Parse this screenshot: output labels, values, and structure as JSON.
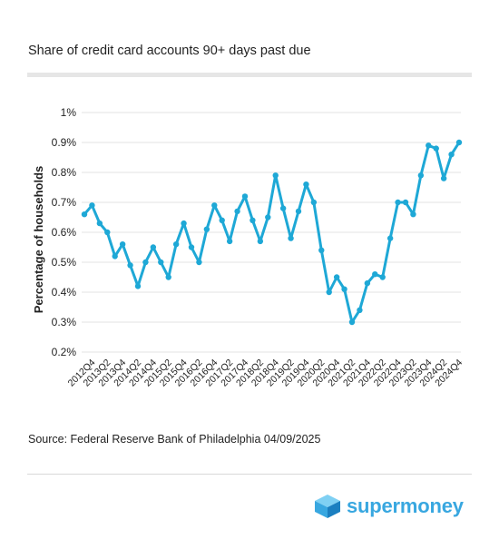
{
  "chart_data": {
    "type": "line",
    "title": "Share of credit card accounts 90+ days past due",
    "xlabel": "",
    "ylabel": "Percentage of households",
    "ylim": [
      0.2,
      1.0
    ],
    "yticks": [
      "0.2%",
      "0.3%",
      "0.4%",
      "0.5%",
      "0.6%",
      "0.7%",
      "0.8%",
      "0.9%",
      "1%"
    ],
    "ytick_values": [
      0.2,
      0.3,
      0.4,
      0.5,
      0.6,
      0.7,
      0.8,
      0.9,
      1.0
    ],
    "xtick_labels": [
      "2012Q4",
      "2013Q2",
      "2013Q4",
      "2014Q2",
      "2014Q4",
      "2015Q2",
      "2015Q4",
      "2016Q2",
      "2016Q4",
      "2017Q2",
      "2017Q4",
      "2018Q2",
      "2018Q4",
      "2019Q2",
      "2019Q4",
      "2020Q2",
      "2020Q4",
      "2021Q2",
      "2021Q4",
      "2022Q2",
      "2022Q4",
      "2023Q2",
      "2023Q4",
      "2024Q2",
      "2024Q4"
    ],
    "grid": true,
    "legend": "none",
    "line_color": "#1ea8d6",
    "categories": [
      "2012Q3",
      "2012Q4",
      "2013Q1",
      "2013Q2",
      "2013Q3",
      "2013Q4",
      "2014Q1",
      "2014Q2",
      "2014Q3",
      "2014Q4",
      "2015Q1",
      "2015Q2",
      "2015Q3",
      "2015Q4",
      "2016Q1",
      "2016Q2",
      "2016Q3",
      "2016Q4",
      "2017Q1",
      "2017Q2",
      "2017Q3",
      "2017Q4",
      "2018Q1",
      "2018Q2",
      "2018Q3",
      "2018Q4",
      "2019Q1",
      "2019Q2",
      "2019Q3",
      "2019Q4",
      "2020Q1",
      "2020Q2",
      "2020Q3",
      "2020Q4",
      "2021Q1",
      "2021Q2",
      "2021Q3",
      "2021Q4",
      "2022Q1",
      "2022Q2",
      "2022Q3",
      "2022Q4",
      "2023Q1",
      "2023Q2",
      "2023Q3",
      "2023Q4",
      "2024Q1",
      "2024Q2",
      "2024Q3",
      "2024Q4"
    ],
    "values": [
      0.66,
      0.69,
      0.63,
      0.6,
      0.52,
      0.56,
      0.49,
      0.42,
      0.5,
      0.55,
      0.5,
      0.45,
      0.56,
      0.63,
      0.55,
      0.5,
      0.61,
      0.69,
      0.64,
      0.57,
      0.67,
      0.72,
      0.64,
      0.57,
      0.65,
      0.79,
      0.68,
      0.58,
      0.67,
      0.76,
      0.7,
      0.54,
      0.4,
      0.45,
      0.41,
      0.3,
      0.34,
      0.43,
      0.46,
      0.45,
      0.58,
      0.7,
      0.7,
      0.66,
      0.79,
      0.89,
      0.88,
      0.78,
      0.86,
      0.9
    ]
  },
  "footer": {
    "source": "Source: Federal Reserve Bank of Philadelphia 04/09/2025",
    "brand": "supermoney"
  }
}
